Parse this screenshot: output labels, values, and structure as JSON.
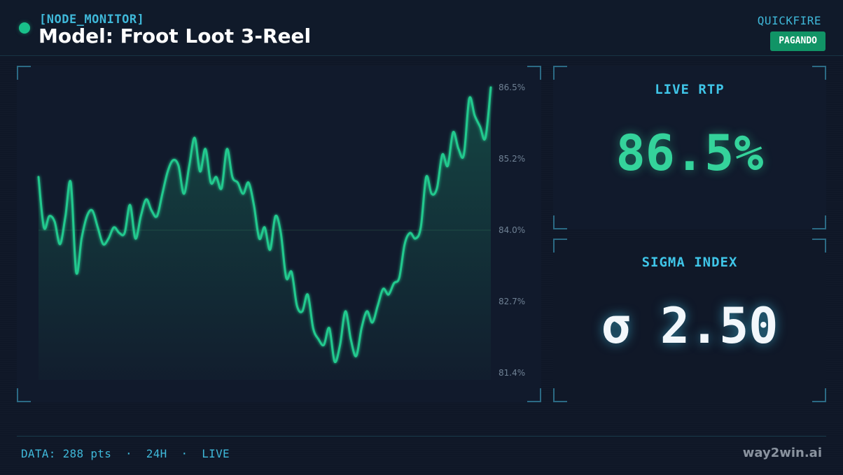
{
  "header": {
    "node_tag": "[NODE_MONITOR]",
    "title": "Model: Froot Loot 3-Reel",
    "provider": "QUICKFIRE",
    "status": "PAGANDO"
  },
  "rtp_card": {
    "label": "LIVE RTP",
    "value": "86.5%"
  },
  "sigma_card": {
    "label": "SIGMA INDEX",
    "value": "σ 2.50"
  },
  "footer": {
    "data_summary": "DATA: 288 pts  ·  24H  ·  LIVE",
    "brand": "way2win.ai"
  },
  "colors": {
    "accent": "#3fc5e8",
    "line": "#34d39b",
    "status_badge": "#119466",
    "background": "#0f1727"
  },
  "chart_data": {
    "type": "area",
    "ylim": [
      81.4,
      86.5
    ],
    "y_ticks": [
      "86.5%",
      "85.2%",
      "84.0%",
      "82.7%",
      "81.4%"
    ],
    "grid": false,
    "values": [
      84.9,
      84.0,
      84.2,
      84.1,
      83.7,
      84.2,
      84.8,
      83.2,
      83.8,
      84.2,
      84.3,
      84.0,
      83.7,
      83.8,
      84.0,
      83.9,
      83.9,
      84.4,
      83.8,
      84.2,
      84.5,
      84.3,
      84.2,
      84.6,
      85.0,
      85.2,
      85.1,
      84.6,
      85.1,
      85.6,
      85.0,
      85.4,
      84.8,
      84.9,
      84.7,
      85.4,
      84.9,
      84.8,
      84.6,
      84.8,
      84.4,
      83.8,
      84.0,
      83.6,
      84.2,
      83.9,
      83.1,
      83.2,
      82.6,
      82.5,
      82.8,
      82.2,
      82.0,
      81.9,
      82.2,
      81.6,
      81.9,
      82.5,
      82.0,
      81.7,
      82.2,
      82.5,
      82.3,
      82.6,
      82.9,
      82.8,
      83.0,
      83.1,
      83.7,
      83.9,
      83.8,
      84.0,
      84.9,
      84.6,
      84.7,
      85.3,
      85.1,
      85.7,
      85.4,
      85.3,
      86.3,
      86.0,
      85.8,
      85.6,
      86.5
    ]
  }
}
